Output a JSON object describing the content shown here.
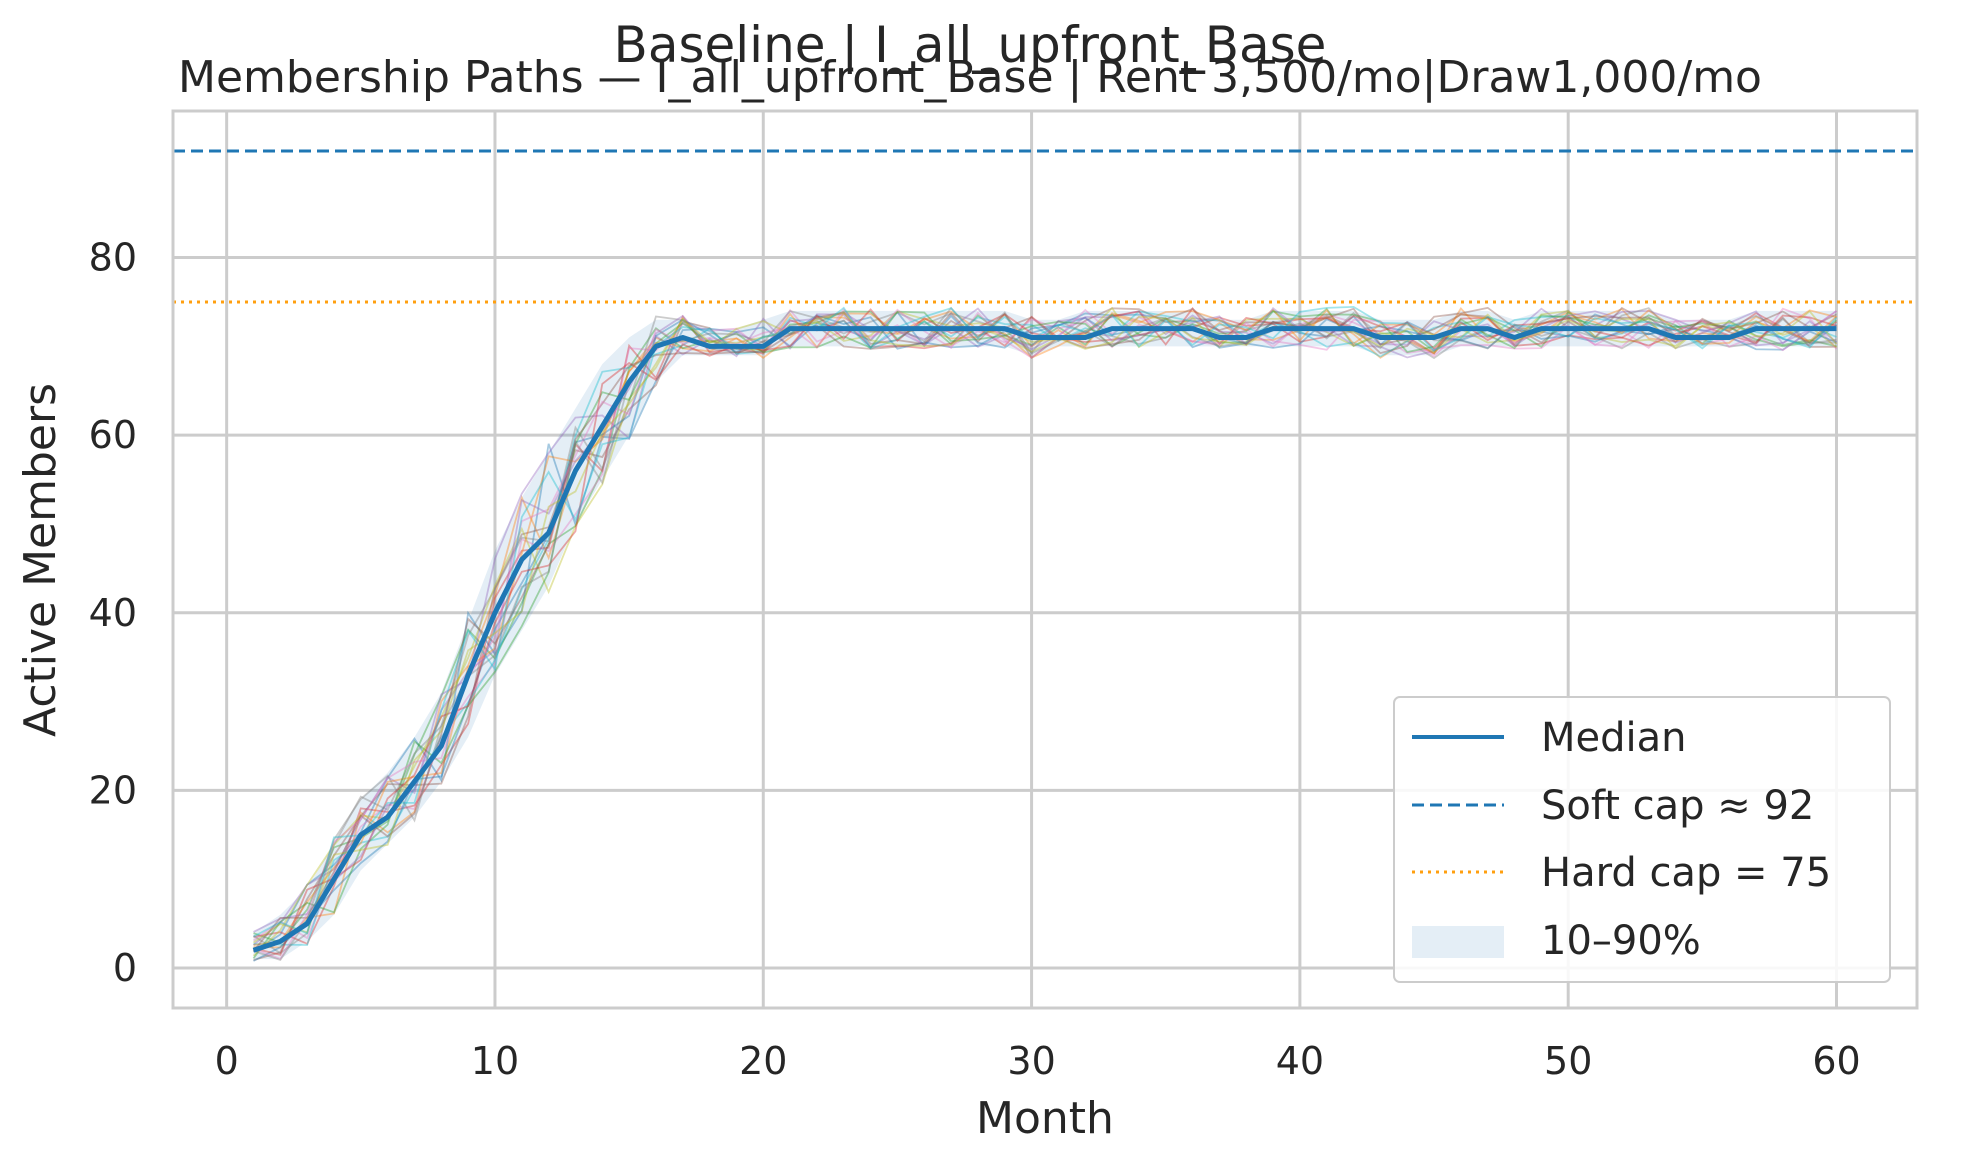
{
  "chart_data": {
    "type": "line",
    "suptitle": "Baseline | I_all_upfront_Base",
    "title": "Membership Paths — I_all_upfront_Base | Rent 3,500/mo|Draw1,000/mo",
    "xlabel": "Month",
    "ylabel": "Active Members",
    "xlim": [
      -2,
      63
    ],
    "ylim": [
      -4.5,
      96.5
    ],
    "xticks": [
      0,
      10,
      20,
      30,
      40,
      50,
      60
    ],
    "yticks": [
      0,
      20,
      40,
      60,
      80
    ],
    "grid": true,
    "legend_position": "lower right",
    "reference_lines": [
      {
        "name": "Soft cap ≈ 92",
        "y": 92,
        "style": "dashed",
        "color": "#1f77b4"
      },
      {
        "name": "Hard cap = 75",
        "y": 75,
        "style": "dotted",
        "color": "#ff9f0f"
      }
    ],
    "months": [
      1,
      2,
      3,
      4,
      5,
      6,
      7,
      8,
      9,
      10,
      11,
      12,
      13,
      14,
      15,
      16,
      17,
      18,
      19,
      20,
      21,
      22,
      23,
      24,
      25,
      26,
      27,
      28,
      29,
      30,
      31,
      32,
      33,
      34,
      35,
      36,
      37,
      38,
      39,
      40,
      41,
      42,
      43,
      44,
      45,
      46,
      47,
      48,
      49,
      50,
      51,
      52,
      53,
      54,
      55,
      56,
      57,
      58,
      59,
      60
    ],
    "median": [
      2,
      3,
      5,
      10,
      15,
      17,
      21,
      25,
      33,
      40,
      46,
      49,
      56,
      61,
      66,
      70,
      71,
      70,
      70,
      70,
      72,
      72,
      72,
      72,
      72,
      72,
      72,
      72,
      72,
      71,
      71,
      71,
      72,
      72,
      72,
      72,
      71,
      71,
      72,
      72,
      72,
      72,
      71,
      71,
      71,
      72,
      72,
      71,
      72,
      72,
      72,
      72,
      72,
      71,
      71,
      71,
      72,
      72,
      72,
      72
    ],
    "band_10_90": {
      "name": "10–90%",
      "lower": [
        1,
        1,
        3,
        6,
        11,
        14,
        17,
        21,
        26,
        33,
        38,
        43,
        50,
        55,
        60,
        66,
        69,
        69,
        69,
        69,
        70,
        70,
        70,
        70,
        70,
        70,
        70,
        70,
        70,
        69,
        70,
        70,
        70,
        70,
        70,
        70,
        70,
        70,
        70,
        70,
        70,
        70,
        69,
        69,
        69,
        70,
        70,
        70,
        70,
        70,
        70,
        70,
        70,
        70,
        70,
        70,
        70,
        70,
        70,
        70
      ],
      "upper": [
        4,
        6,
        9,
        14,
        19,
        22,
        26,
        31,
        39,
        47,
        53,
        58,
        63,
        68,
        71,
        73,
        73,
        72,
        72,
        73,
        74,
        74,
        74,
        74,
        74,
        74,
        74,
        74,
        74,
        73,
        73,
        74,
        74,
        74,
        74,
        74,
        73,
        73,
        74,
        74,
        74,
        74,
        73,
        73,
        73,
        74,
        74,
        73,
        74,
        74,
        74,
        74,
        74,
        73,
        73,
        73,
        74,
        74,
        74,
        74
      ]
    },
    "median_series": {
      "name": "Median",
      "color": "#1f77b4"
    },
    "simulated_paths": {
      "count": 20,
      "colors": [
        "#1f77b4",
        "#ff7f0e",
        "#2ca02c",
        "#d62728",
        "#9467bd",
        "#8c564b",
        "#e377c2",
        "#7f7f7f",
        "#bcbd22",
        "#17becf"
      ]
    }
  }
}
